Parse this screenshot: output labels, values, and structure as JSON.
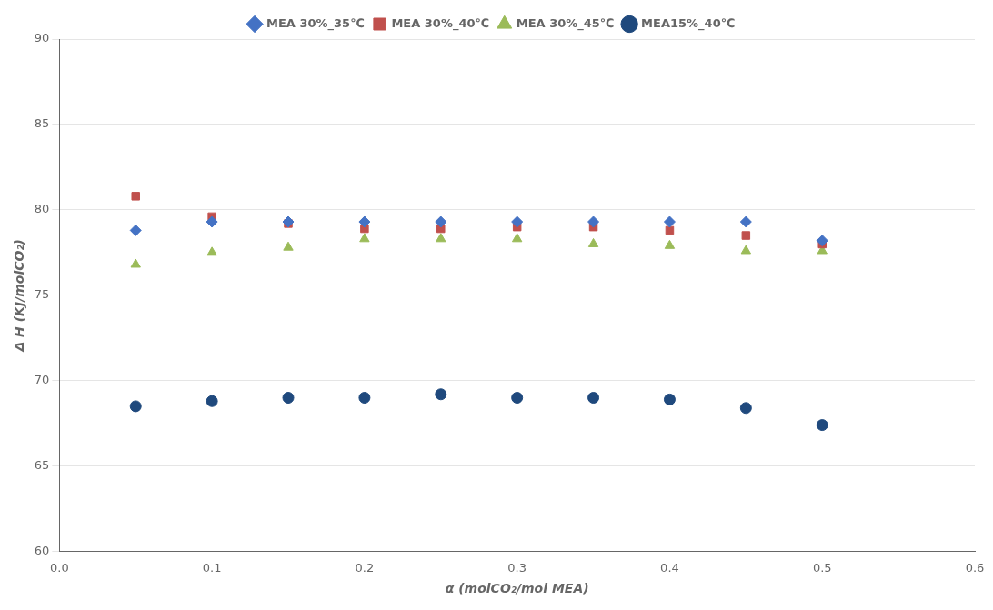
{
  "chart_data": {
    "type": "scatter",
    "x_label": "α (molCO₂/mol MEA)",
    "y_label": "Δ H (KJ/molCO₂)",
    "x": [
      0.05,
      0.1,
      0.15,
      0.2,
      0.25,
      0.3,
      0.35,
      0.4,
      0.45,
      0.5
    ],
    "series": [
      {
        "name": "MEA 30%_35℃",
        "color": "#4472C4",
        "marker": "diamond",
        "values": [
          78.8,
          79.3,
          79.3,
          79.3,
          79.3,
          79.3,
          79.3,
          79.3,
          79.3,
          78.2
        ]
      },
      {
        "name": "MEA 30%_40℃",
        "color": "#C0504D",
        "marker": "square",
        "values": [
          80.8,
          79.6,
          79.2,
          78.9,
          78.9,
          79.0,
          79.0,
          78.8,
          78.5,
          78.0
        ]
      },
      {
        "name": "MEA 30%_45℃",
        "color": "#9BBB59",
        "marker": "triangle",
        "values": [
          76.8,
          77.5,
          77.8,
          78.3,
          78.3,
          78.3,
          78.0,
          77.9,
          77.6,
          77.6
        ]
      },
      {
        "name": "MEA15%_40℃",
        "color": "#1F497D",
        "marker": "circle",
        "values": [
          68.5,
          68.8,
          69.0,
          69.0,
          69.2,
          69.0,
          69.0,
          68.9,
          68.4,
          67.4
        ]
      }
    ],
    "xlim": [
      0.0,
      0.6
    ],
    "ylim": [
      60,
      90
    ],
    "xticks": [
      {
        "value": 0.0,
        "label": "0.0"
      },
      0.1,
      0.2,
      0.3,
      0.4,
      0.5,
      0.6
    ],
    "yticks": [
      60,
      65,
      70,
      75,
      80,
      85,
      90
    ],
    "grid": "y",
    "legend": "top"
  }
}
